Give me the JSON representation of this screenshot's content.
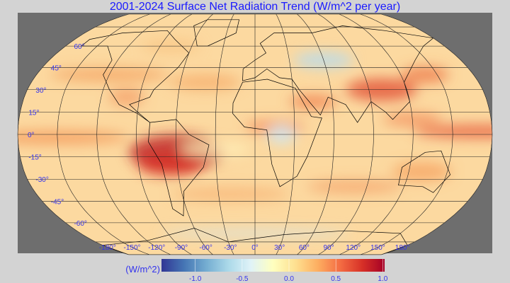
{
  "title": "2001-2024 Surface Net Radiation Trend (W/m^2 per year)",
  "map": {
    "projection": "Robinson",
    "variable": "Surface net radiation trend",
    "lat_labels": [
      "60°",
      "45°",
      "30°",
      "15°",
      "0°",
      "-15°",
      "-30°",
      "-45°",
      "-60°"
    ],
    "lat_values": [
      60,
      45,
      30,
      15,
      0,
      -15,
      -30,
      -45,
      -60
    ],
    "lon_labels": [
      "-180°",
      "-150°",
      "-120°",
      "-90°",
      "-60°",
      "-30°",
      "0°",
      "30°",
      "60°",
      "90°",
      "120°",
      "150°",
      "180°"
    ],
    "lon_values": [
      -180,
      -150,
      -120,
      -90,
      -60,
      -30,
      0,
      30,
      60,
      90,
      120,
      150,
      180
    ],
    "background_color": "#6e6e6e",
    "label_color": "#3333ee"
  },
  "colorbar": {
    "unit_label": "(W/m^2)",
    "ticks": [
      "-1.0",
      "-0.5",
      "0.0",
      "0.5",
      "1.0"
    ],
    "tick_values": [
      -1.0,
      -0.5,
      0.0,
      0.5,
      1.0
    ],
    "range": [
      -1.36,
      1.02
    ],
    "colors": [
      "#313695",
      "#4575b4",
      "#74add1",
      "#abd9e9",
      "#e0f3f8",
      "#ffffbf",
      "#fee090",
      "#fdae61",
      "#f46d43",
      "#d73027",
      "#a50026"
    ]
  }
}
